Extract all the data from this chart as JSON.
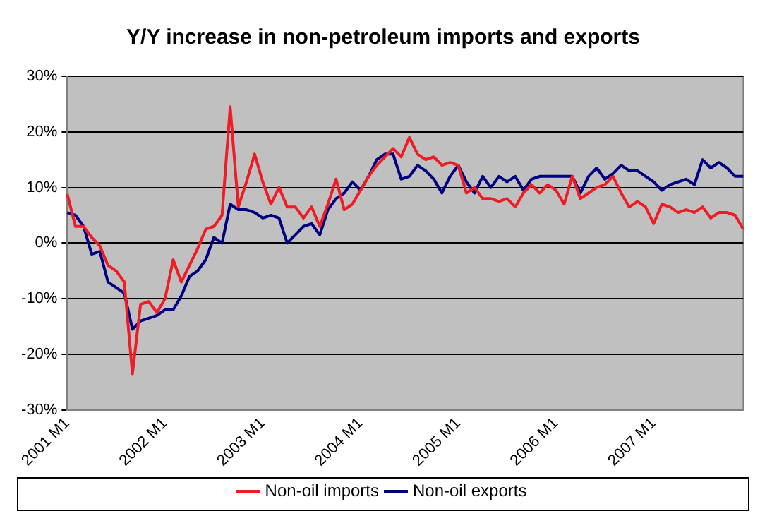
{
  "chart_data": {
    "type": "line",
    "title": "Y/Y increase in non-petroleum imports and exports",
    "categories": [
      "2001 M1",
      null,
      null,
      null,
      null,
      null,
      null,
      null,
      null,
      null,
      null,
      null,
      "2002 M1",
      null,
      null,
      null,
      null,
      null,
      null,
      null,
      null,
      null,
      null,
      null,
      "2003 M1",
      null,
      null,
      null,
      null,
      null,
      null,
      null,
      null,
      null,
      null,
      null,
      "2004 M1",
      null,
      null,
      null,
      null,
      null,
      null,
      null,
      null,
      null,
      null,
      null,
      "2005 M1",
      null,
      null,
      null,
      null,
      null,
      null,
      null,
      null,
      null,
      null,
      null,
      "2006 M1",
      null,
      null,
      null,
      null,
      null,
      null,
      null,
      null,
      null,
      null,
      null,
      "2007 M1",
      null,
      null,
      null,
      null,
      null,
      null,
      null,
      null,
      null,
      null,
      null
    ],
    "series": [
      {
        "name": "Non-oil imports",
        "color": "#ee1c25",
        "values": [
          8.8,
          3,
          3,
          1,
          -0.5,
          -4,
          -5,
          -7,
          -23.5,
          -11,
          -10.5,
          -12.5,
          -10,
          -3,
          -7,
          -4,
          -1,
          2.5,
          3,
          5,
          24.5,
          6.5,
          11,
          16,
          11,
          7,
          10,
          6.5,
          6.5,
          4.5,
          6.5,
          3,
          7,
          11.5,
          6,
          7,
          9.5,
          12,
          14,
          15.5,
          17,
          15.5,
          19,
          16,
          15,
          15.5,
          14,
          14.5,
          14,
          9,
          10,
          8,
          8,
          7.5,
          8,
          6.5,
          9,
          10.5,
          9,
          10.5,
          9.5,
          7,
          12,
          8,
          9,
          10,
          10.5,
          12,
          9,
          6.5,
          7.5,
          6.5,
          3.5,
          7,
          6.5,
          5.5,
          6,
          5.5,
          6.5,
          4.5,
          5.5,
          5.5,
          5,
          2.5
        ]
      },
      {
        "name": "Non-oil exports",
        "color": "#000080",
        "values": [
          5.5,
          5,
          3,
          -2,
          -1.5,
          -7,
          -8,
          -9,
          -15.5,
          -14,
          -13.5,
          -13,
          -12,
          -12,
          -9.5,
          -6,
          -5,
          -3,
          1,
          0,
          7,
          6,
          6,
          5.5,
          4.5,
          5,
          4.5,
          0,
          1.5,
          3,
          3.5,
          1.5,
          6,
          8,
          9,
          11,
          9.5,
          12,
          15,
          16,
          16,
          11.5,
          12,
          14,
          13,
          11.5,
          9,
          12,
          14,
          11,
          9,
          12,
          10,
          12,
          11,
          12,
          9.5,
          11.5,
          12,
          12,
          12,
          12,
          12,
          9,
          12,
          13.5,
          11.5,
          12.5,
          14,
          13,
          13,
          12,
          11,
          9.5,
          10.5,
          11,
          11.5,
          10.5,
          15,
          13.5,
          14.5,
          13.5,
          12,
          12
        ]
      }
    ],
    "ylim": [
      -30,
      30
    ],
    "yticks": [
      {
        "value": -30,
        "label": "-30%"
      },
      {
        "value": -20,
        "label": "-20%"
      },
      {
        "value": -10,
        "label": "-10%"
      },
      {
        "value": 0,
        "label": "0%"
      },
      {
        "value": 10,
        "label": "10%"
      },
      {
        "value": 20,
        "label": "20%"
      },
      {
        "value": 30,
        "label": "30%"
      }
    ],
    "grid": "y",
    "legend": "bottom",
    "marker": "none",
    "line_style": "solid"
  }
}
